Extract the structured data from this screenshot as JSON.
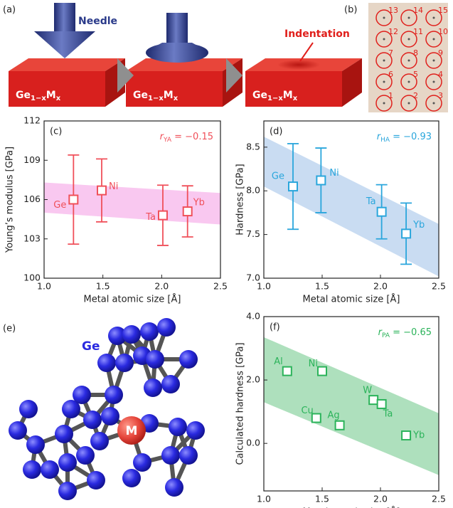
{
  "panel_a": {
    "label": "(a)",
    "needle": "Needle",
    "indentation": "Indentation",
    "material": {
      "base": "Ge",
      "sub1": "1−x",
      "metal": "M",
      "sub2": "x"
    }
  },
  "panel_b": {
    "label": "(b)",
    "indent_numbers": [
      [
        "13",
        "14",
        "15"
      ],
      [
        "12",
        "11",
        "10"
      ],
      [
        "7",
        "8",
        "9"
      ],
      [
        "6",
        "5",
        "4"
      ],
      [
        "1",
        "2",
        "3"
      ]
    ]
  },
  "panel_e": {
    "label": "(e)",
    "host": "Ge",
    "dopant": "M"
  },
  "chart_data": [
    {
      "type": "scatter",
      "panel_label": "(c)",
      "xlabel": "Metal atomic size [Å]",
      "ylabel": "Young’s modulus [GPa]",
      "annotation": {
        "symbol": "r",
        "subscript": "YA",
        "text": " = −0.15"
      },
      "labels": [
        "Ge",
        "Ni",
        "Ta",
        "Yb"
      ],
      "x": [
        1.25,
        1.49,
        2.01,
        2.22
      ],
      "values": [
        106.0,
        106.7,
        104.8,
        105.1
      ],
      "errors": [
        3.4,
        2.4,
        2.3,
        1.95
      ],
      "color": "#f0505a",
      "band": {
        "x": [
          1.0,
          2.5
        ],
        "upper": [
          107.3,
          106.5
        ],
        "lower": [
          105.0,
          104.1
        ],
        "color": "#f9c8f0"
      },
      "xlim": [
        1.0,
        2.5
      ],
      "xticks": [
        {
          "value": 1,
          "label": "1.0"
        },
        1.5,
        {
          "value": 2,
          "label": "2.0"
        },
        2.5
      ],
      "ylim": [
        100,
        112
      ],
      "yticks": [
        100,
        103,
        106,
        109,
        112
      ]
    },
    {
      "type": "scatter",
      "panel_label": "(d)",
      "xlabel": "Metal atomic size [Å]",
      "ylabel": "Hardness [GPa]",
      "annotation": {
        "symbol": "r",
        "subscript": "HA",
        "text": " = −0.93"
      },
      "labels": [
        "Ge",
        "Ni",
        "Ta",
        "Yb"
      ],
      "x": [
        1.25,
        1.49,
        2.01,
        2.22
      ],
      "values": [
        8.05,
        8.12,
        7.76,
        7.51
      ],
      "errors": [
        0.49,
        0.37,
        0.31,
        0.35
      ],
      "color": "#2aa6dc",
      "band": {
        "x": [
          1.0,
          2.5
        ],
        "upper": [
          8.62,
          7.62
        ],
        "lower": [
          8.05,
          7.02
        ],
        "color": "#c9dcf2"
      },
      "xlim": [
        1.0,
        2.5
      ],
      "xticks": [
        {
          "value": 1,
          "label": "1.0"
        },
        1.5,
        {
          "value": 2,
          "label": "2.0"
        },
        2.5
      ],
      "ylim": [
        7.0,
        8.8
      ],
      "yticks": [
        {
          "value": 7,
          "label": "7.0"
        },
        7.5,
        {
          "value": 8,
          "label": "8.0"
        },
        8.5
      ]
    },
    {
      "type": "scatter",
      "panel_label": "(f)",
      "xlabel": "Metal atomic size [Å]",
      "ylabel": "Calculated hardness [GPa]",
      "annotation": {
        "symbol": "r",
        "subscript": "PA",
        "text": " = −0.65"
      },
      "labels": [
        "Al",
        "Ni",
        "Cu",
        "Ag",
        "W",
        "Ta",
        "Yb"
      ],
      "x": [
        1.2,
        1.5,
        1.45,
        1.65,
        1.94,
        2.01,
        2.22
      ],
      "values": [
        2.28,
        2.28,
        0.8,
        0.57,
        1.37,
        1.24,
        0.25
      ],
      "color": "#2bb35a",
      "band": {
        "x": [
          1.0,
          2.5
        ],
        "upper": [
          3.35,
          0.95
        ],
        "lower": [
          1.3,
          -1.0
        ],
        "color": "#aee0bd"
      },
      "xlim": [
        1.0,
        2.5
      ],
      "xticks": [
        {
          "value": 1,
          "label": "1.0"
        },
        1.5,
        {
          "value": 2,
          "label": "2.0"
        },
        2.5
      ],
      "ylim": [
        -1.5,
        4.0
      ],
      "yticks": [
        {
          "value": 0,
          "label": "0.0"
        },
        {
          "value": 2,
          "label": "2.0"
        },
        {
          "value": 4,
          "label": "4.0"
        }
      ]
    }
  ]
}
